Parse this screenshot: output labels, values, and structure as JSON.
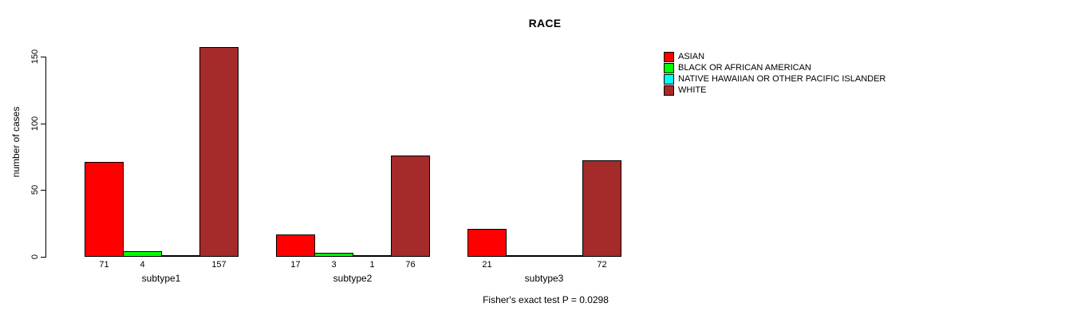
{
  "chart_data": {
    "type": "bar",
    "title": "RACE",
    "ylabel": "number of cases",
    "xlabel": "",
    "footnote": "Fisher's exact test P = 0.0298",
    "categories": [
      "subtype1",
      "subtype2",
      "subtype3"
    ],
    "series": [
      {
        "name": "ASIAN",
        "color": "#FF0000",
        "values": [
          71,
          17,
          21
        ]
      },
      {
        "name": "BLACK OR AFRICAN AMERICAN",
        "color": "#00FF00",
        "values": [
          4,
          3,
          0
        ]
      },
      {
        "name": "NATIVE HAWAIIAN OR OTHER PACIFIC ISLANDER",
        "color": "#00FFFF",
        "values": [
          0,
          1,
          0
        ]
      },
      {
        "name": "WHITE",
        "color": "#A52A2A",
        "values": [
          157,
          76,
          72
        ]
      }
    ],
    "yticks": [
      0,
      50,
      100,
      150
    ],
    "ylim": [
      0,
      157
    ],
    "grid": false,
    "bar_borders": "#000000",
    "bar_value_labels_shown_for_nonzero_only": true,
    "legend_position": "top-right",
    "background": "#FFFFFF"
  }
}
